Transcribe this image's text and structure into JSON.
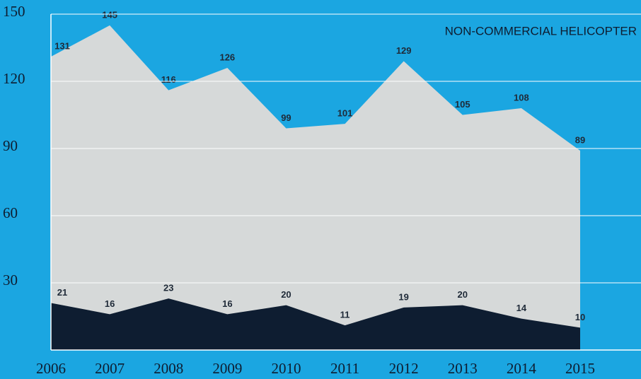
{
  "chart_data": {
    "type": "area",
    "title": "NON-COMMERCIAL HELICOPTER",
    "x": [
      2006,
      2007,
      2008,
      2009,
      2010,
      2011,
      2012,
      2013,
      2014,
      2015
    ],
    "series": [
      {
        "color": "#d6d9d9",
        "values": [
          131,
          145,
          116,
          126,
          99,
          101,
          129,
          105,
          108,
          89
        ]
      },
      {
        "color": "#0e1d31",
        "values": [
          21,
          16,
          23,
          16,
          20,
          11,
          19,
          20,
          14,
          10
        ]
      }
    ],
    "ylim": [
      0,
      150
    ],
    "yticks": [
      30,
      60,
      90,
      120,
      150
    ],
    "grid": true,
    "background": "#1ba6e1"
  }
}
